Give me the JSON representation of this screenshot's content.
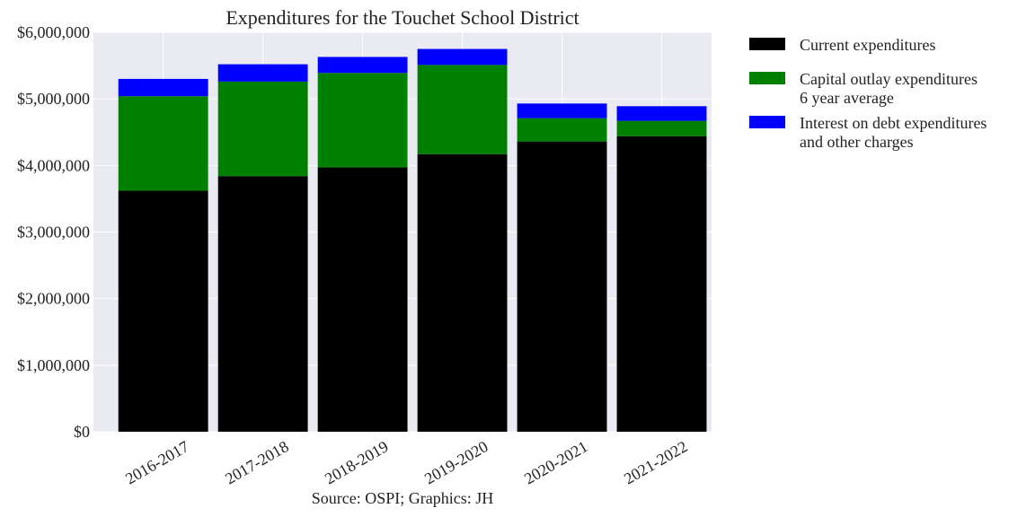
{
  "chart_data": {
    "type": "bar",
    "stacked": true,
    "title": "Expenditures for the Touchet School District",
    "xlabel": "Source: OSPI; Graphics: JH",
    "ylabel": "",
    "categories": [
      "2016-2017",
      "2017-2018",
      "2018-2019",
      "2019-2020",
      "2020-2021",
      "2021-2022"
    ],
    "series": [
      {
        "name": "Current expenditures",
        "color": "#000000",
        "values": [
          3620000,
          3840000,
          3970000,
          4170000,
          4360000,
          4440000
        ]
      },
      {
        "name": "Capital outlay expenditures\n6 year average",
        "color": "#008000",
        "values": [
          1420000,
          1420000,
          1420000,
          1340000,
          350000,
          230000
        ]
      },
      {
        "name": "Interest on debt expenditures\nand other charges",
        "color": "#0000ff",
        "values": [
          260000,
          260000,
          240000,
          240000,
          220000,
          220000
        ]
      }
    ],
    "ylim": [
      0,
      6000000
    ],
    "yticks": [
      0,
      1000000,
      2000000,
      3000000,
      4000000,
      5000000,
      6000000
    ],
    "ytick_labels": [
      "$0",
      "$1,000,000",
      "$2,000,000",
      "$3,000,000",
      "$4,000,000",
      "$5,000,000",
      "$6,000,000"
    ],
    "grid": true,
    "legend_position": "outside-upper-right",
    "plot_background": "#eaeaf2"
  }
}
